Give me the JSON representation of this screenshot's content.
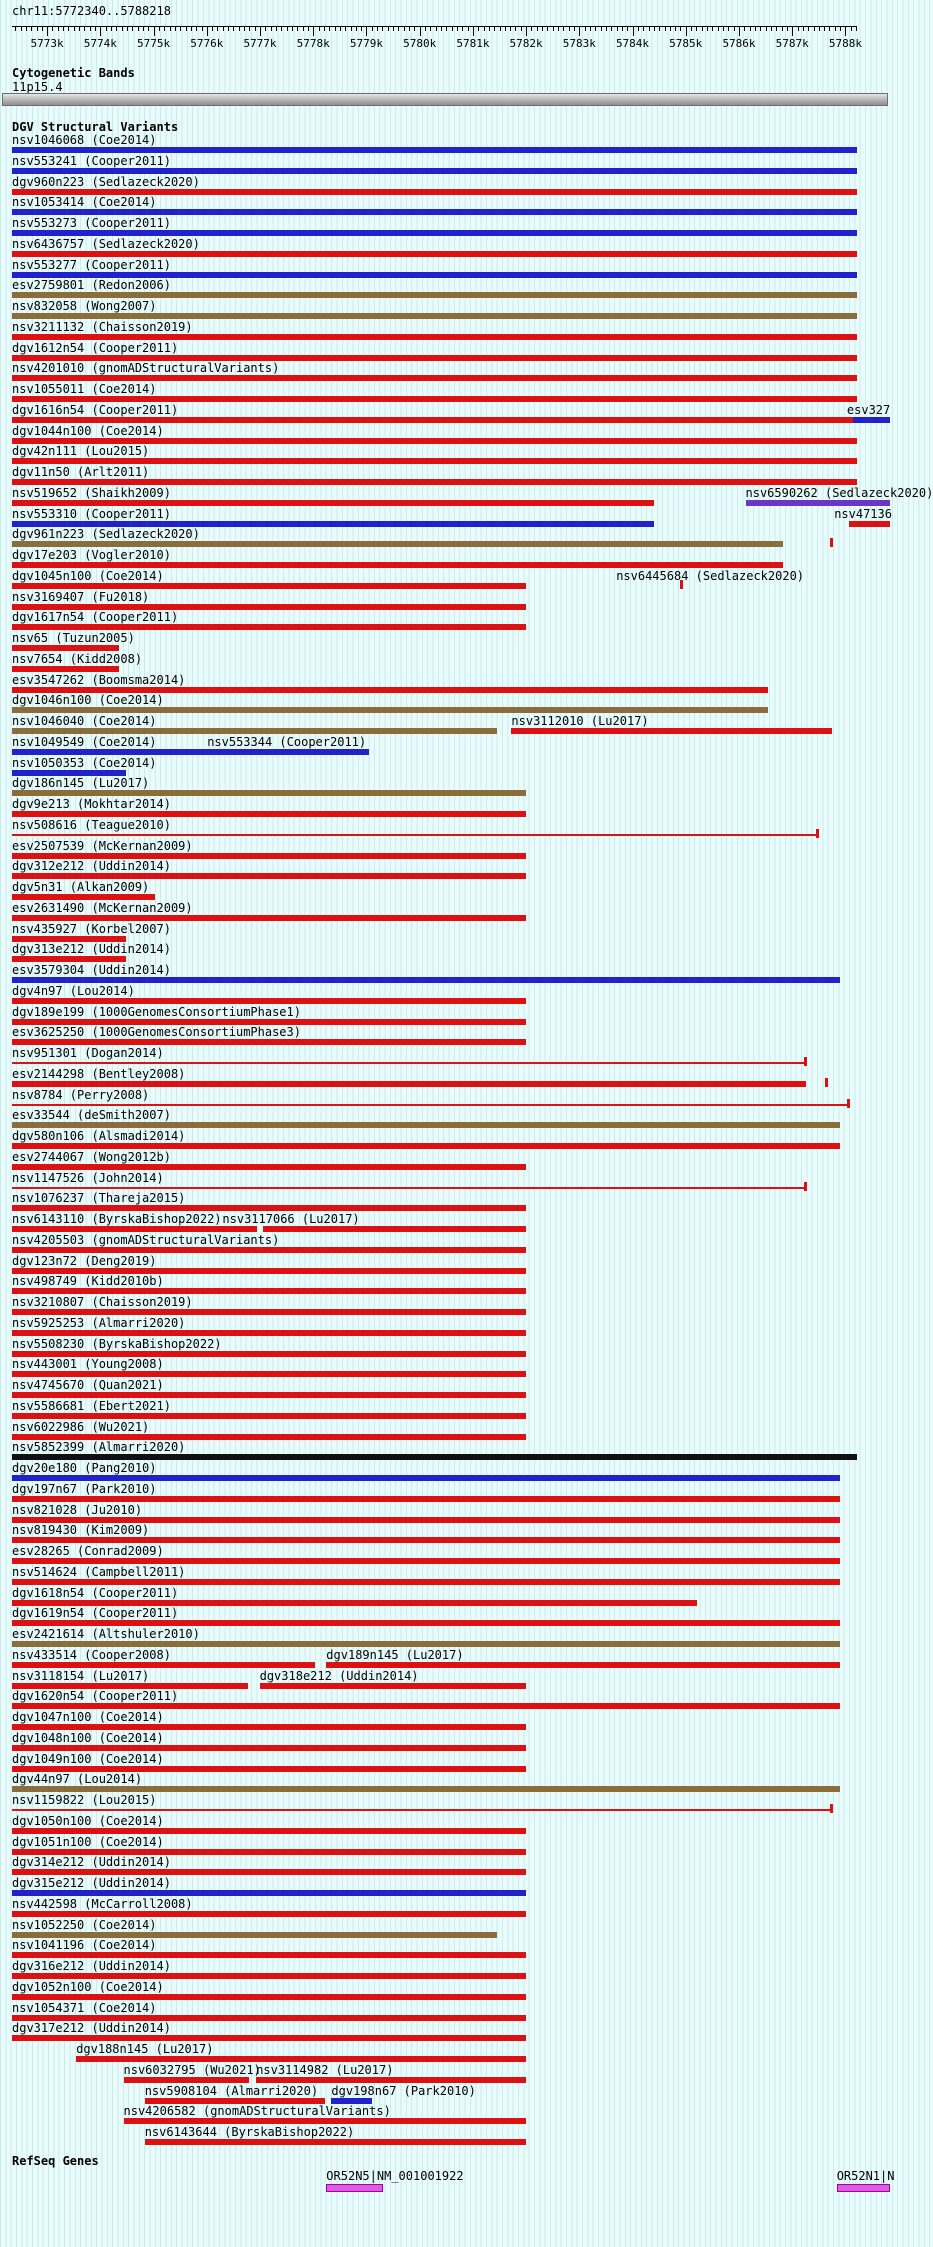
{
  "title": "chr11:5772340..5788218",
  "colors": {
    "B": "#2222cc",
    "R": "#dd1111",
    "N": "#8a6d3b",
    "K": "#111111",
    "P": "#6a35c8",
    "M": "#e05ce0"
  },
  "sections": {
    "cytobands": {
      "header": "Cytogenetic Bands"
    },
    "dgv": {
      "header": "DGV Structural Variants"
    },
    "refseq": {
      "header": "RefSeq Genes"
    }
  },
  "chart_data": {
    "type": "bar",
    "orientation": "horizontal-genomic-intervals",
    "region": {
      "chrom": "chr11",
      "start": 5772340,
      "end": 5788218
    },
    "ruler_tick_labels": [
      "5773k",
      "5774k",
      "5775k",
      "5776k",
      "5777k",
      "5778k",
      "5779k",
      "5780k",
      "5781k",
      "5782k",
      "5783k",
      "5784k",
      "5785k",
      "5786k",
      "5787k",
      "5788k"
    ],
    "cytoband": {
      "name": "11p15.4",
      "x0": 0,
      "x1": 1
    },
    "legend_note": "B=gain(blue) R=loss(red) N=gain+loss(brown) K=inversion(black) P=complex(purple) M=gene(magenta)",
    "variant_rows": [
      [
        {
          "l": "nsv1046068 (Coe2014)",
          "c": "B",
          "a": 0,
          "b": 1
        }
      ],
      [
        {
          "l": "nsv553241 (Cooper2011)",
          "c": "B",
          "a": 0,
          "b": 1
        }
      ],
      [
        {
          "l": "dgv960n223 (Sedlazeck2020)",
          "c": "R",
          "a": 0,
          "b": 1
        }
      ],
      [
        {
          "l": "nsv1053414 (Coe2014)",
          "c": "B",
          "a": 0,
          "b": 1
        }
      ],
      [
        {
          "l": "nsv553273 (Cooper2011)",
          "c": "B",
          "a": 0,
          "b": 1
        }
      ],
      [
        {
          "l": "nsv6436757 (Sedlazeck2020)",
          "c": "R",
          "a": 0,
          "b": 1
        }
      ],
      [
        {
          "l": "nsv553277 (Cooper2011)",
          "c": "B",
          "a": 0,
          "b": 1
        }
      ],
      [
        {
          "l": "esv2759801 (Redon2006)",
          "c": "N",
          "a": 0,
          "b": 1
        }
      ],
      [
        {
          "l": "nsv832058 (Wong2007)",
          "c": "N",
          "a": 0,
          "b": 1
        }
      ],
      [
        {
          "l": "nsv3211132 (Chaisson2019)",
          "c": "R",
          "a": 0,
          "b": 1
        }
      ],
      [
        {
          "l": "dgv1612n54 (Cooper2011)",
          "c": "R",
          "a": 0,
          "b": 1
        }
      ],
      [
        {
          "l": "nsv4201010 (gnomADStructuralVariants)",
          "c": "R",
          "a": 0,
          "b": 1
        }
      ],
      [
        {
          "l": "nsv1055011 (Coe2014)",
          "c": "R",
          "a": 0,
          "b": 1
        }
      ],
      [
        {
          "l": "dgv1616n54 (Cooper2011)",
          "c": "R",
          "a": 0,
          "b": 1
        },
        {
          "l": "esv327",
          "c": "B",
          "a": 0.995,
          "b": 1.1,
          "lx": 0.988,
          "cut": true
        }
      ],
      [
        {
          "l": "dgv1044n100 (Coe2014)",
          "c": "R",
          "a": 0,
          "b": 1
        }
      ],
      [
        {
          "l": "dgv42n111 (Lou2015)",
          "c": "R",
          "a": 0,
          "b": 1
        }
      ],
      [
        {
          "l": "dgv11n50 (Arlt2011)",
          "c": "R",
          "a": 0,
          "b": 1
        }
      ],
      [
        {
          "l": "nsv519652 (Shaikh2009)",
          "c": "R",
          "a": 0,
          "b": 0.76
        },
        {
          "l": "nsv6590262 (Sedlazeck2020)",
          "c": "P",
          "a": 0.868,
          "b": 1.1,
          "lx": 0.868,
          "cut": true
        }
      ],
      [
        {
          "l": "nsv553310 (Cooper2011)",
          "c": "B",
          "a": 0,
          "b": 0.76
        },
        {
          "l": "nsv47136",
          "c": "R",
          "a": 0.99,
          "b": 1.1,
          "lx": 0.973,
          "cut": true
        }
      ],
      [
        {
          "l": "dgv961n223 (Sedlazeck2020)",
          "c": "N",
          "a": 0,
          "b": 0.912
        },
        {
          "c": "R",
          "a": 0.968,
          "b": 0.972,
          "s": "mark"
        }
      ],
      [
        {
          "l": "dgv17e203 (Vogler2010)",
          "c": "R",
          "a": 0,
          "b": 0.912
        }
      ],
      [
        {
          "l": "dgv1045n100 (Coe2014)",
          "c": "R",
          "a": 0,
          "b": 0.608
        },
        {
          "l": "nsv6445684 (Sedlazeck2020)",
          "c": "R",
          "a": 0.79,
          "b": 0.794,
          "lx": 0.715,
          "s": "mark"
        }
      ],
      [
        {
          "l": "nsv3169407 (Fu2018)",
          "c": "R",
          "a": 0,
          "b": 0.608
        }
      ],
      [
        {
          "l": "dgv1617n54 (Cooper2011)",
          "c": "R",
          "a": 0,
          "b": 0.608
        }
      ],
      [
        {
          "l": "nsv65 (Tuzun2005)",
          "c": "R",
          "a": 0,
          "b": 0.127
        }
      ],
      [
        {
          "l": "nsv7654 (Kidd2008)",
          "c": "R",
          "a": 0,
          "b": 0.127
        }
      ],
      [
        {
          "l": "esv3547262 (Boomsma2014)",
          "c": "R",
          "a": 0,
          "b": 0.895
        }
      ],
      [
        {
          "l": "dgv1046n100 (Coe2014)",
          "c": "N",
          "a": 0,
          "b": 0.895
        }
      ],
      [
        {
          "l": "nsv1046040 (Coe2014)",
          "c": "N",
          "a": 0,
          "b": 0.574
        },
        {
          "l": "nsv3112010 (Lu2017)",
          "c": "R",
          "a": 0.591,
          "b": 0.97,
          "lx": 0.591
        }
      ],
      [
        {
          "l": "nsv1049549 (Coe2014)",
          "c": "B",
          "a": 0,
          "b": 0.422
        },
        {
          "l": "nsv553344 (Cooper2011)",
          "c": "B",
          "s": "label",
          "lx": 0.231
        }
      ],
      [
        {
          "l": "nsv1050353 (Coe2014)",
          "c": "B",
          "a": 0,
          "b": 0.135
        }
      ],
      [
        {
          "l": "dgv186n145 (Lu2017)",
          "c": "N",
          "a": 0,
          "b": 0.608
        }
      ],
      [
        {
          "l": "dgv9e213 (Mokhtar2014)",
          "c": "R",
          "a": 0,
          "b": 0.608
        }
      ],
      [
        {
          "l": "nsv508616 (Teague2010)",
          "c": "R",
          "a": 0,
          "b": 0.954,
          "s": "line"
        }
      ],
      [
        {
          "l": "esv2507539 (McKernan2009)",
          "c": "R",
          "a": 0,
          "b": 0.608
        }
      ],
      [
        {
          "l": "dgv312e212 (Uddin2014)",
          "c": "R",
          "a": 0,
          "b": 0.608
        }
      ],
      [
        {
          "l": "dgv5n31 (Alkan2009)",
          "c": "R",
          "a": 0,
          "b": 0.169
        }
      ],
      [
        {
          "l": "esv2631490 (McKernan2009)",
          "c": "R",
          "a": 0,
          "b": 0.608
        }
      ],
      [
        {
          "l": "nsv435927 (Korbel2007)",
          "c": "R",
          "a": 0,
          "b": 0.135
        }
      ],
      [
        {
          "l": "dgv313e212 (Uddin2014)",
          "c": "R",
          "a": 0,
          "b": 0.135
        }
      ],
      [
        {
          "l": "esv3579304 (Uddin2014)",
          "c": "B",
          "a": 0,
          "b": 0.98
        }
      ],
      [
        {
          "l": "dgv4n97 (Lou2014)",
          "c": "R",
          "a": 0,
          "b": 0.608
        }
      ],
      [
        {
          "l": "dgv189e199 (1000GenomesConsortiumPhase1)",
          "c": "R",
          "a": 0,
          "b": 0.608
        }
      ],
      [
        {
          "l": "esv3625250 (1000GenomesConsortiumPhase3)",
          "c": "R",
          "a": 0,
          "b": 0.608
        }
      ],
      [
        {
          "l": "nsv951301 (Dogan2014)",
          "c": "R",
          "a": 0,
          "b": 0.94,
          "s": "line"
        }
      ],
      [
        {
          "l": "esv2144298 (Bentley2008)",
          "c": "R",
          "a": 0,
          "b": 0.94
        },
        {
          "c": "R",
          "a": 0.962,
          "b": 0.966,
          "s": "mark"
        }
      ],
      [
        {
          "l": "nsv8784 (Perry2008)",
          "c": "R",
          "a": 0,
          "b": 0.99,
          "s": "line"
        }
      ],
      [
        {
          "l": "esv33544 (deSmith2007)",
          "c": "N",
          "a": 0,
          "b": 0.98
        }
      ],
      [
        {
          "l": "dgv580n106 (Alsmadi2014)",
          "c": "R",
          "a": 0,
          "b": 0.98
        }
      ],
      [
        {
          "l": "esv2744067 (Wong2012b)",
          "c": "R",
          "a": 0,
          "b": 0.608
        }
      ],
      [
        {
          "l": "nsv1147526 (John2014)",
          "c": "R",
          "a": 0,
          "b": 0.94,
          "s": "line"
        }
      ],
      [
        {
          "l": "nsv1076237 (Thareja2015)",
          "c": "R",
          "a": 0,
          "b": 0.608
        }
      ],
      [
        {
          "l": "nsv6143110 (ByrskaBishop2022)",
          "c": "R",
          "a": 0,
          "b": 0.29
        },
        {
          "l": "nsv3117066 (Lu2017)",
          "c": "R",
          "a": 0.297,
          "b": 0.608,
          "lx": 0.249
        }
      ],
      [
        {
          "l": "nsv4205503 (gnomADStructuralVariants)",
          "c": "R",
          "a": 0,
          "b": 0.608
        }
      ],
      [
        {
          "l": "dgv123n72 (Deng2019)",
          "c": "R",
          "a": 0,
          "b": 0.608
        }
      ],
      [
        {
          "l": "nsv498749 (Kidd2010b)",
          "c": "R",
          "a": 0,
          "b": 0.608
        }
      ],
      [
        {
          "l": "nsv3210807 (Chaisson2019)",
          "c": "R",
          "a": 0,
          "b": 0.608
        }
      ],
      [
        {
          "l": "nsv5925253 (Almarri2020)",
          "c": "R",
          "a": 0,
          "b": 0.608
        }
      ],
      [
        {
          "l": "nsv5508230 (ByrskaBishop2022)",
          "c": "R",
          "a": 0,
          "b": 0.608
        }
      ],
      [
        {
          "l": "nsv443001 (Young2008)",
          "c": "R",
          "a": 0,
          "b": 0.608
        }
      ],
      [
        {
          "l": "nsv4745670 (Quan2021)",
          "c": "R",
          "a": 0,
          "b": 0.608
        }
      ],
      [
        {
          "l": "nsv5586681 (Ebert2021)",
          "c": "R",
          "a": 0,
          "b": 0.608
        }
      ],
      [
        {
          "l": "nsv6022986 (Wu2021)",
          "c": "R",
          "a": 0,
          "b": 0.608
        }
      ],
      [
        {
          "l": "nsv5852399 (Almarri2020)",
          "c": "K",
          "a": 0,
          "b": 1
        }
      ],
      [
        {
          "l": "dgv20e180 (Pang2010)",
          "c": "B",
          "a": 0,
          "b": 0.98
        }
      ],
      [
        {
          "l": "dgv197n67 (Park2010)",
          "c": "R",
          "a": 0,
          "b": 0.98
        }
      ],
      [
        {
          "l": "nsv821028 (Ju2010)",
          "c": "R",
          "a": 0,
          "b": 0.98
        }
      ],
      [
        {
          "l": "nsv819430 (Kim2009)",
          "c": "R",
          "a": 0,
          "b": 0.98
        }
      ],
      [
        {
          "l": "esv28265 (Conrad2009)",
          "c": "R",
          "a": 0,
          "b": 0.98
        }
      ],
      [
        {
          "l": "nsv514624 (Campbell2011)",
          "c": "R",
          "a": 0,
          "b": 0.98
        }
      ],
      [
        {
          "l": "dgv1618n54 (Cooper2011)",
          "c": "R",
          "a": 0,
          "b": 0.811
        }
      ],
      [
        {
          "l": "dgv1619n54 (Cooper2011)",
          "c": "R",
          "a": 0,
          "b": 0.98
        }
      ],
      [
        {
          "l": "esv2421614 (Altshuler2010)",
          "c": "N",
          "a": 0,
          "b": 0.98
        }
      ],
      [
        {
          "l": "nsv433514 (Cooper2008)",
          "c": "R",
          "a": 0,
          "b": 0.358
        },
        {
          "l": "dgv189n145 (Lu2017)",
          "c": "R",
          "a": 0.372,
          "b": 0.98,
          "lx": 0.372
        }
      ],
      [
        {
          "l": "nsv3118154 (Lu2017)",
          "c": "R",
          "a": 0,
          "b": 0.279
        },
        {
          "l": "dgv318e212 (Uddin2014)",
          "c": "R",
          "a": 0.293,
          "b": 0.608,
          "lx": 0.293
        }
      ],
      [
        {
          "l": "dgv1620n54 (Cooper2011)",
          "c": "R",
          "a": 0,
          "b": 0.98
        }
      ],
      [
        {
          "l": "dgv1047n100 (Coe2014)",
          "c": "R",
          "a": 0,
          "b": 0.608
        }
      ],
      [
        {
          "l": "dgv1048n100 (Coe2014)",
          "c": "R",
          "a": 0,
          "b": 0.608
        }
      ],
      [
        {
          "l": "dgv1049n100 (Coe2014)",
          "c": "R",
          "a": 0,
          "b": 0.608
        }
      ],
      [
        {
          "l": "dgv44n97 (Lou2014)",
          "c": "N",
          "a": 0,
          "b": 0.98
        }
      ],
      [
        {
          "l": "nsv1159822 (Lou2015)",
          "c": "R",
          "a": 0,
          "b": 0.97,
          "s": "line"
        }
      ],
      [
        {
          "l": "dgv1050n100 (Coe2014)",
          "c": "R",
          "a": 0,
          "b": 0.608
        }
      ],
      [
        {
          "l": "dgv1051n100 (Coe2014)",
          "c": "R",
          "a": 0,
          "b": 0.608
        }
      ],
      [
        {
          "l": "dgv314e212 (Uddin2014)",
          "c": "R",
          "a": 0,
          "b": 0.608
        }
      ],
      [
        {
          "l": "dgv315e212 (Uddin2014)",
          "c": "B",
          "a": 0,
          "b": 0.608
        }
      ],
      [
        {
          "l": "nsv442598 (McCarroll2008)",
          "c": "R",
          "a": 0,
          "b": 0.608
        }
      ],
      [
        {
          "l": "nsv1052250 (Coe2014)",
          "c": "N",
          "a": 0,
          "b": 0.574
        }
      ],
      [
        {
          "l": "nsv1041196 (Coe2014)",
          "c": "R",
          "a": 0,
          "b": 0.608
        }
      ],
      [
        {
          "l": "dgv316e212 (Uddin2014)",
          "c": "R",
          "a": 0,
          "b": 0.608
        }
      ],
      [
        {
          "l": "dgv1052n100 (Coe2014)",
          "c": "R",
          "a": 0,
          "b": 0.608
        }
      ],
      [
        {
          "l": "nsv1054371 (Coe2014)",
          "c": "R",
          "a": 0,
          "b": 0.608
        }
      ],
      [
        {
          "l": "dgv317e212 (Uddin2014)",
          "c": "R",
          "a": 0,
          "b": 0.608
        }
      ],
      [
        {
          "l": "dgv188n145 (Lu2017)",
          "c": "R",
          "a": 0.076,
          "b": 0.608,
          "lx": 0.076
        }
      ],
      [
        {
          "l": "nsv6032795 (Wu2021)",
          "c": "R",
          "a": 0.132,
          "b": 0.28,
          "lx": 0.132
        },
        {
          "l": "nsv3114982 (Lu2017)",
          "c": "R",
          "a": 0.289,
          "b": 0.608,
          "lx": 0.289
        }
      ],
      [
        {
          "l": "nsv5908104 (Almarri2020)",
          "c": "R",
          "a": 0.157,
          "b": 0.37,
          "lx": 0.157
        },
        {
          "l": "dgv198n67 (Park2010)",
          "c": "B",
          "a": 0.378,
          "b": 0.426,
          "lx": 0.378
        }
      ],
      [
        {
          "l": "nsv4206582 (gnomADStructuralVariants)",
          "c": "R",
          "a": 0.132,
          "b": 0.608,
          "lx": 0.132
        }
      ],
      [
        {
          "l": "nsv6143644 (ByrskaBishop2022)",
          "c": "R",
          "a": 0.157,
          "b": 0.608,
          "lx": 0.157
        }
      ]
    ],
    "genes": [
      {
        "l": "OR52N5|NM_001001922",
        "c": "M",
        "a": 0.372,
        "b": 0.439,
        "lx": 0.372
      },
      {
        "l": "OR52N1|N",
        "c": "M",
        "a": 0.976,
        "b": 1.1,
        "lx": 0.976,
        "cut": true
      }
    ]
  }
}
